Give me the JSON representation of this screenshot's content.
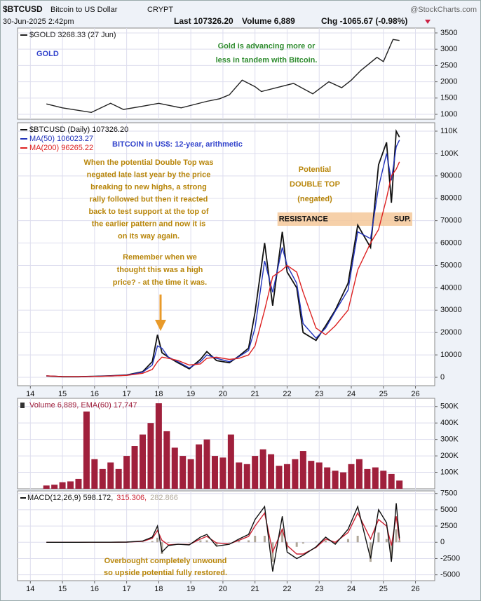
{
  "header": {
    "symbol": "$BTCUSD",
    "name": "Bitcoin to US Dollar",
    "exchange": "CRYPT",
    "source": "@StockCharts.com",
    "date": "30-Jun-2025 2:42pm",
    "last": "Last 107326.20",
    "volume": "Volume 6,889",
    "change": "Chg -1065.67 (-0.98%)"
  },
  "chart_data": [
    {
      "type": "line",
      "xlim": [
        13.6,
        26.6
      ],
      "ylim": [
        850,
        3650
      ],
      "yticks": [
        1000,
        1500,
        2000,
        2500,
        3000,
        3500
      ],
      "grid": true,
      "x": [
        14.5,
        15.0,
        15.9,
        16.5,
        16.9,
        17.5,
        18.0,
        18.7,
        19.5,
        19.9,
        20.2,
        20.6,
        21.0,
        21.2,
        22.2,
        22.8,
        23.3,
        23.7,
        24.0,
        24.3,
        24.8,
        25.0,
        25.3,
        25.5
      ],
      "series": [
        {
          "name": "$GOLD 3268.33 (27 Jun)",
          "color": "#222222",
          "values": [
            1320,
            1200,
            1060,
            1340,
            1150,
            1250,
            1340,
            1200,
            1400,
            1480,
            1600,
            2050,
            1850,
            1700,
            1950,
            1630,
            2000,
            1820,
            2050,
            2350,
            2750,
            2620,
            3300,
            3268
          ]
        }
      ],
      "annotations": [
        {
          "text": [
            "GOLD"
          ],
          "color": "#3344cc"
        },
        {
          "text": [
            "Gold is advancing more or",
            "less in tandem with Bitcoin."
          ],
          "color": "#2e8b2e"
        }
      ]
    },
    {
      "type": "line",
      "xlim": [
        13.6,
        26.6
      ],
      "ylim": [
        -3760,
        113760
      ],
      "grid": true,
      "xticks": [
        14,
        15,
        16,
        17,
        18,
        19,
        20,
        21,
        22,
        23,
        24,
        25,
        26
      ],
      "yticks": [
        0,
        10000,
        20000,
        30000,
        40000,
        50000,
        60000,
        70000,
        80000,
        90000,
        {
          "value": 100000,
          "label": "100K"
        },
        {
          "value": 110000,
          "label": "110K"
        }
      ],
      "x": [
        14.5,
        15.0,
        15.5,
        16.0,
        16.5,
        17.0,
        17.5,
        17.8,
        17.96,
        18.1,
        18.3,
        18.6,
        18.95,
        19.3,
        19.5,
        19.8,
        20.2,
        20.5,
        20.8,
        21.0,
        21.3,
        21.55,
        21.85,
        22.0,
        22.3,
        22.5,
        22.9,
        23.2,
        23.5,
        23.9,
        24.2,
        24.6,
        24.85,
        25.1,
        25.25,
        25.4,
        25.5
      ],
      "series": [
        {
          "name": "$BTCUSD (Daily) 107326.20",
          "color": "#111111",
          "values": [
            600,
            250,
            250,
            430,
            650,
            1000,
            2500,
            7000,
            19000,
            11000,
            9000,
            6500,
            3800,
            8000,
            11500,
            7500,
            6500,
            9500,
            13000,
            29000,
            60000,
            32000,
            65000,
            47000,
            40000,
            20000,
            16500,
            23000,
            30000,
            42000,
            68000,
            58000,
            95000,
            105000,
            78000,
            110000,
            107326
          ]
        },
        {
          "name": "MA(50) 106023.27",
          "color": "#2233bb",
          "values": [
            620,
            280,
            260,
            420,
            620,
            950,
            2300,
            5500,
            14000,
            13000,
            9000,
            7000,
            4200,
            7000,
            10000,
            8500,
            7000,
            9200,
            12000,
            22000,
            52000,
            38000,
            58000,
            50000,
            42000,
            24000,
            17500,
            22000,
            29500,
            39000,
            65000,
            62000,
            85000,
            100000,
            88000,
            103000,
            106023
          ]
        },
        {
          "name": "MA(200) 96265.22",
          "color": "#dd2222",
          "values": [
            650,
            350,
            270,
            380,
            560,
            850,
            1800,
            3500,
            7000,
            9000,
            8500,
            7500,
            5500,
            6000,
            8500,
            9000,
            8000,
            8500,
            10000,
            14000,
            30000,
            45000,
            48000,
            50000,
            47000,
            38000,
            22000,
            19000,
            23000,
            30000,
            48000,
            60000,
            66000,
            80000,
            90000,
            93000,
            96265
          ]
        }
      ],
      "band": {
        "from": 67700,
        "to": 73700,
        "x": [
          21.7,
          25.9
        ],
        "color": "#f5c89a",
        "labels": [
          "RESISTANCE",
          "SUP."
        ]
      },
      "annotations": [
        {
          "text": [
            "BITCOIN in US$: 12-year, arithmetic"
          ],
          "color": "#3344cc"
        },
        {
          "text": [
            "When the potential Double Top was",
            "negated late last year by the price",
            "breaking to new highs, a strong",
            "rally followed but then it reacted",
            "back to test support at the top of",
            "the earlier pattern and now it is",
            "on its way again."
          ],
          "color": "#b8860b"
        },
        {
          "text": [
            "Potential",
            "DOUBLE TOP",
            "(negated)"
          ],
          "color": "#b8860b"
        },
        {
          "text": [
            "Remember  when  we",
            "thought this was a high",
            "price? - at the time it was."
          ],
          "color": "#b8860b"
        }
      ]
    },
    {
      "type": "bar",
      "xlim": [
        13.6,
        26.6
      ],
      "ylim": [
        0,
        550000
      ],
      "grid": true,
      "yticks": [
        {
          "value": 100000,
          "label": "100K"
        },
        {
          "value": 200000,
          "label": "200K"
        },
        {
          "value": 300000,
          "label": "300K"
        },
        {
          "value": 400000,
          "label": "400K"
        },
        {
          "value": 500000,
          "label": "500K"
        }
      ],
      "x": [
        14.5,
        14.75,
        15.0,
        15.25,
        15.5,
        15.75,
        16.0,
        16.25,
        16.5,
        16.75,
        17.0,
        17.25,
        17.5,
        17.75,
        18.0,
        18.25,
        18.5,
        18.75,
        19.0,
        19.25,
        19.5,
        19.75,
        20.0,
        20.25,
        20.5,
        20.75,
        21.0,
        21.25,
        21.5,
        21.75,
        22.0,
        22.25,
        22.5,
        22.75,
        23.0,
        23.25,
        23.5,
        23.75,
        24.0,
        24.25,
        24.5,
        24.75,
        25.0,
        25.25,
        25.5
      ],
      "series": [
        {
          "name": "Volume 6,889, EMA(60) 17,747",
          "color": "#a0203c",
          "values": [
            20000,
            25000,
            40000,
            45000,
            60000,
            470000,
            180000,
            120000,
            160000,
            120000,
            200000,
            260000,
            330000,
            400000,
            520000,
            350000,
            250000,
            200000,
            180000,
            270000,
            300000,
            200000,
            190000,
            330000,
            160000,
            150000,
            200000,
            240000,
            210000,
            140000,
            150000,
            180000,
            230000,
            170000,
            160000,
            130000,
            110000,
            100000,
            150000,
            180000,
            120000,
            130000,
            110000,
            90000,
            50000
          ]
        }
      ]
    },
    {
      "type": "line",
      "xlim": [
        13.6,
        26.6
      ],
      "ylim": [
        -5900,
        7900
      ],
      "grid": true,
      "xticks": [
        14,
        15,
        16,
        17,
        18,
        19,
        20,
        21,
        22,
        23,
        24,
        25,
        26
      ],
      "yticks": [
        -5000,
        -2500,
        0,
        2500,
        5000,
        7500
      ],
      "x": [
        14.5,
        15.0,
        15.5,
        16.0,
        16.5,
        17.0,
        17.5,
        17.8,
        17.96,
        18.1,
        18.3,
        18.6,
        18.95,
        19.3,
        19.5,
        19.8,
        20.2,
        20.5,
        20.8,
        21.0,
        21.3,
        21.55,
        21.85,
        22.0,
        22.3,
        22.5,
        22.9,
        23.2,
        23.5,
        23.9,
        24.2,
        24.6,
        24.85,
        25.1,
        25.25,
        25.4,
        25.5
      ],
      "series": [
        {
          "name": "282.866",
          "color": "#b0a89a",
          "style": "bar",
          "values": [
            0,
            0,
            0,
            1,
            2,
            5,
            50,
            200,
            700,
            -1800,
            -100,
            0,
            -50,
            300,
            300,
            -500,
            -50,
            200,
            300,
            1000,
            1000,
            -3000,
            2000,
            -1000,
            -700,
            -200,
            100,
            300,
            -300,
            500,
            1000,
            -3000,
            1500,
            500,
            -2500,
            2000,
            283
          ]
        },
        {
          "name": "315.306,",
          "color": "#cc2233",
          "values": [
            0,
            0,
            0,
            4,
            8,
            25,
            150,
            600,
            1800,
            300,
            -400,
            -300,
            -350,
            500,
            900,
            -100,
            -250,
            300,
            900,
            2500,
            4500,
            -1500,
            2000,
            -500,
            -1800,
            -1800,
            -800,
            500,
            0,
            1500,
            4500,
            500,
            3500,
            2500,
            -500,
            4000,
            315
          ]
        },
        {
          "name": "MACD(12,26,9) 598.172,",
          "color": "#111111",
          "values": [
            0,
            0,
            0,
            5,
            10,
            30,
            200,
            800,
            2500,
            -1500,
            -500,
            -300,
            -400,
            800,
            1200,
            -600,
            -300,
            500,
            1200,
            3500,
            5500,
            -4500,
            4000,
            -1500,
            -2500,
            -2000,
            -700,
            800,
            -300,
            2000,
            5500,
            -2500,
            5000,
            3000,
            -3000,
            6000,
            598
          ]
        }
      ],
      "annotations": [
        {
          "text": [
            "Overbought completely unwound",
            "so upside potential fully restored."
          ],
          "color": "#b8860b"
        }
      ]
    }
  ]
}
